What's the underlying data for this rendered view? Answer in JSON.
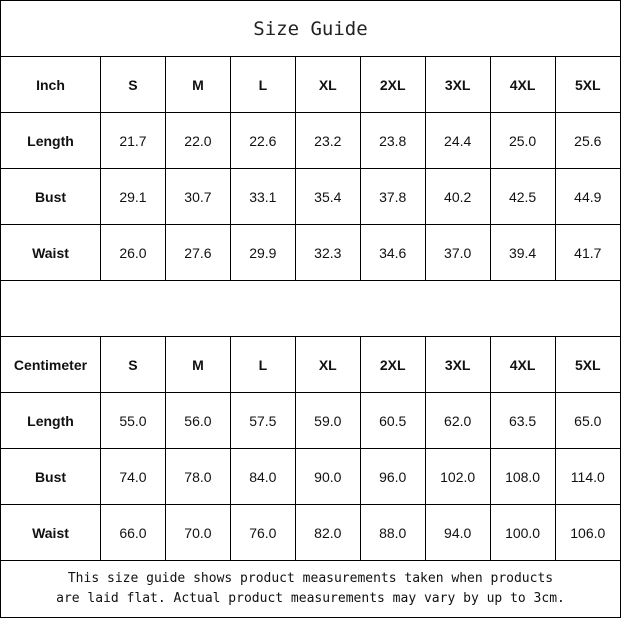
{
  "title": "Size Guide",
  "sizes": [
    "S",
    "M",
    "L",
    "XL",
    "2XL",
    "3XL",
    "4XL",
    "5XL"
  ],
  "tables": [
    {
      "unit": "Inch",
      "rows": [
        {
          "label": "Length",
          "values": [
            "21.7",
            "22.0",
            "22.6",
            "23.2",
            "23.8",
            "24.4",
            "25.0",
            "25.6"
          ]
        },
        {
          "label": "Bust",
          "values": [
            "29.1",
            "30.7",
            "33.1",
            "35.4",
            "37.8",
            "40.2",
            "42.5",
            "44.9"
          ]
        },
        {
          "label": "Waist",
          "values": [
            "26.0",
            "27.6",
            "29.9",
            "32.3",
            "34.6",
            "37.0",
            "39.4",
            "41.7"
          ]
        }
      ]
    },
    {
      "unit": "Centimeter",
      "rows": [
        {
          "label": "Length",
          "values": [
            "55.0",
            "56.0",
            "57.5",
            "59.0",
            "60.5",
            "62.0",
            "63.5",
            "65.0"
          ]
        },
        {
          "label": "Bust",
          "values": [
            "74.0",
            "78.0",
            "84.0",
            "90.0",
            "96.0",
            "102.0",
            "108.0",
            "114.0"
          ]
        },
        {
          "label": "Waist",
          "values": [
            "66.0",
            "70.0",
            "76.0",
            "82.0",
            "88.0",
            "94.0",
            "100.0",
            "106.0"
          ]
        }
      ]
    }
  ],
  "note": {
    "line1": "This size guide shows product measurements taken when products",
    "line2": "are laid flat. Actual product measurements may vary by up to 3cm."
  }
}
